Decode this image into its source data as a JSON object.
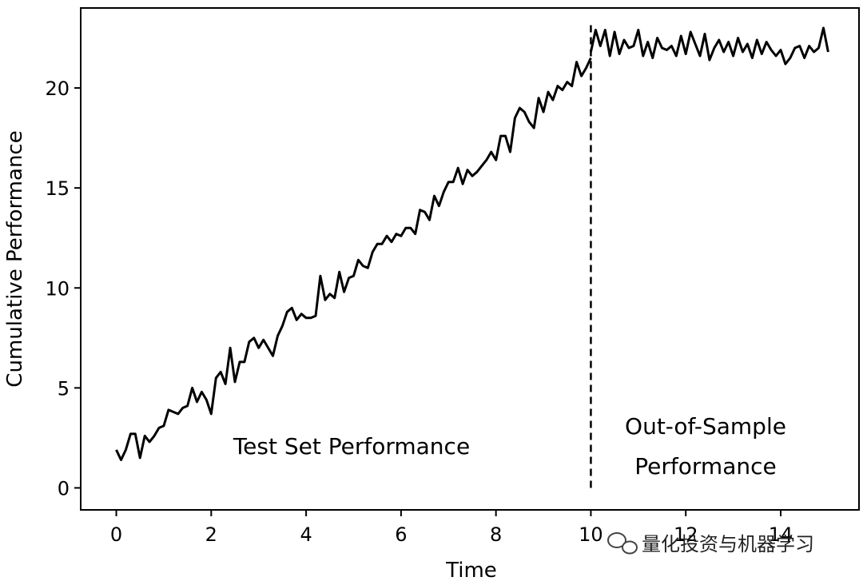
{
  "chart_data": {
    "type": "line",
    "title": "",
    "xlabel": "Time",
    "ylabel": "Cumulative Performance",
    "xlim": [
      -0.75,
      15.65
    ],
    "ylim": [
      -1.1,
      24.0
    ],
    "xticks": [
      "0",
      "2",
      "4",
      "6",
      "8",
      "10",
      "12",
      "14"
    ],
    "yticks": [
      "0",
      "5",
      "10",
      "15",
      "20"
    ],
    "grid": false,
    "legend": "none",
    "split_x": 10,
    "annotations": {
      "test": "Test Set Performance",
      "oos_line1": "Out-of-Sample",
      "oos_line2": "Performance"
    },
    "series": [
      {
        "x": [
          0.0,
          0.1,
          0.2,
          0.3,
          0.4,
          0.5,
          0.6,
          0.7,
          0.8,
          0.9,
          1.0,
          1.1,
          1.2,
          1.3,
          1.4,
          1.5,
          1.6,
          1.7,
          1.8,
          1.9,
          2.0,
          2.1,
          2.2,
          2.3,
          2.4,
          2.5,
          2.6,
          2.7,
          2.8,
          2.9,
          3.0,
          3.1,
          3.2,
          3.3,
          3.4,
          3.5,
          3.6,
          3.7,
          3.8,
          3.9,
          4.0,
          4.1,
          4.2,
          4.3,
          4.4,
          4.5,
          4.6,
          4.7,
          4.8,
          4.9,
          5.0,
          5.1,
          5.2,
          5.3,
          5.4,
          5.5,
          5.6,
          5.7,
          5.8,
          5.9,
          6.0,
          6.1,
          6.2,
          6.3,
          6.4,
          6.5,
          6.6,
          6.7,
          6.8,
          6.9,
          7.0,
          7.1,
          7.2,
          7.3,
          7.4,
          7.5,
          7.6,
          7.7,
          7.8,
          7.9,
          8.0,
          8.1,
          8.2,
          8.3,
          8.4,
          8.5,
          8.6,
          8.7,
          8.8,
          8.9,
          9.0,
          9.1,
          9.2,
          9.3,
          9.4,
          9.5,
          9.6,
          9.7,
          9.8,
          9.9,
          10.0
        ],
        "y": [
          1.9,
          1.4,
          1.9,
          2.7,
          2.7,
          1.5,
          2.6,
          2.3,
          2.6,
          3.0,
          3.1,
          3.9,
          3.8,
          3.7,
          4.0,
          4.1,
          5.0,
          4.3,
          4.8,
          4.4,
          3.7,
          5.5,
          5.8,
          5.2,
          7.0,
          5.3,
          6.3,
          6.3,
          7.3,
          7.5,
          7.0,
          7.4,
          7.0,
          6.6,
          7.6,
          8.1,
          8.8,
          9.0,
          8.4,
          8.7,
          8.5,
          8.5,
          8.6,
          10.6,
          9.4,
          9.7,
          9.5,
          10.8,
          9.8,
          10.5,
          10.6,
          11.4,
          11.1,
          11.0,
          11.8,
          12.2,
          12.2,
          12.6,
          12.3,
          12.7,
          12.6,
          13.0,
          13.0,
          12.7,
          13.9,
          13.8,
          13.4,
          14.6,
          14.1,
          14.8,
          15.3,
          15.3,
          16.0,
          15.2,
          15.9,
          15.6,
          15.8,
          16.1,
          16.4,
          16.8,
          16.4,
          17.6,
          17.6,
          16.8,
          18.5,
          19.0,
          18.8,
          18.3,
          18.0,
          19.5,
          18.8,
          19.8,
          19.4,
          20.1,
          19.9,
          20.3,
          20.1,
          21.3,
          20.6,
          21.0,
          21.5
        ]
      },
      {
        "x": [
          10.0,
          10.1,
          10.2,
          10.3,
          10.4,
          10.5,
          10.6,
          10.7,
          10.8,
          10.9,
          11.0,
          11.1,
          11.2,
          11.3,
          11.4,
          11.5,
          11.6,
          11.7,
          11.8,
          11.9,
          12.0,
          12.1,
          12.2,
          12.3,
          12.4,
          12.5,
          12.6,
          12.7,
          12.8,
          12.9,
          13.0,
          13.1,
          13.2,
          13.3,
          13.4,
          13.5,
          13.6,
          13.7,
          13.8,
          13.9,
          14.0,
          14.1,
          14.2,
          14.3,
          14.4,
          14.5,
          14.6,
          14.7,
          14.8,
          14.9,
          15.0
        ],
        "y": [
          21.8,
          22.9,
          22.1,
          22.9,
          21.6,
          22.8,
          21.7,
          22.4,
          22.0,
          22.1,
          22.9,
          21.6,
          22.3,
          21.5,
          22.5,
          22.0,
          21.9,
          22.1,
          21.6,
          22.6,
          21.7,
          22.8,
          22.2,
          21.6,
          22.7,
          21.4,
          22.0,
          22.4,
          21.8,
          22.3,
          21.6,
          22.5,
          21.8,
          22.2,
          21.5,
          22.4,
          21.7,
          22.3,
          21.9,
          21.6,
          21.9,
          21.2,
          21.5,
          22.0,
          22.1,
          21.5,
          22.1,
          21.8,
          22.0,
          23.0,
          21.8
        ]
      }
    ]
  },
  "watermark": "量化投资与机器学习"
}
